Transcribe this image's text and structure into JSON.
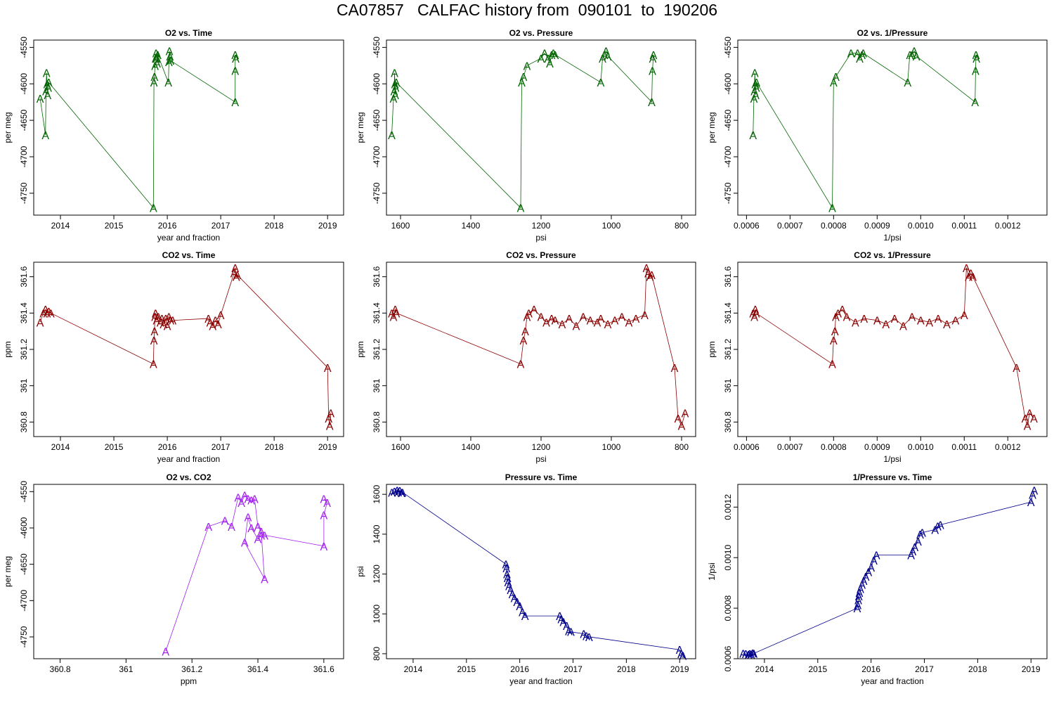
{
  "title": "CA07857   CALFAC history from  090101  to  190206",
  "chart_data": [
    {
      "type": "line",
      "marker": "A",
      "title": "O2 vs. Time",
      "xlabel": "year and fraction",
      "ylabel": "per meg",
      "xlim": [
        2013.5,
        2019.3
      ],
      "ylim": [
        -4780,
        -4540
      ],
      "xticks": [
        2014,
        2015,
        2016,
        2017,
        2018,
        2019
      ],
      "yticks": [
        -4750,
        -4700,
        -4650,
        -4600,
        -4550
      ],
      "color": "#006400",
      "x": [
        2013.62,
        2013.72,
        2013.73,
        2013.74,
        2013.75,
        2013.76,
        2013.77,
        2013.78,
        2015.74,
        2015.75,
        2015.76,
        2015.77,
        2015.78,
        2015.79,
        2015.8,
        2015.81,
        2015.82,
        2016.02,
        2016.03,
        2016.04,
        2016.05,
        2016.06,
        2017.27,
        2017.27,
        2017.27,
        2017.28
      ],
      "y": [
        -4620,
        -4670,
        -4610,
        -4585,
        -4600,
        -4615,
        -4605,
        -4598,
        -4770,
        -4598,
        -4590,
        -4575,
        -4565,
        -4558,
        -4565,
        -4572,
        -4560,
        -4598,
        -4570,
        -4555,
        -4562,
        -4568,
        -4625,
        -4582,
        -4560,
        -4565
      ]
    },
    {
      "type": "line",
      "marker": "A",
      "title": "O2 vs. Pressure",
      "xlabel": "psi",
      "ylabel": "per meg",
      "xlim": [
        1640,
        760
      ],
      "ylim": [
        -4780,
        -4540
      ],
      "xticks": [
        1600,
        1400,
        1200,
        1000,
        800
      ],
      "yticks": [
        -4750,
        -4700,
        -4650,
        -4600,
        -4550
      ],
      "color": "#006400",
      "x": [
        1625,
        1620,
        1618,
        1617,
        1616,
        1615,
        1614,
        1612,
        1258,
        1255,
        1250,
        1240,
        1200,
        1190,
        1180,
        1175,
        1170,
        1165,
        1160,
        1030,
        1025,
        1020,
        1015,
        1010,
        885,
        883,
        880,
        882
      ],
      "y": [
        -4670,
        -4620,
        -4610,
        -4585,
        -4600,
        -4615,
        -4605,
        -4598,
        -4770,
        -4598,
        -4590,
        -4575,
        -4565,
        -4558,
        -4565,
        -4572,
        -4560,
        -4558,
        -4560,
        -4598,
        -4565,
        -4560,
        -4555,
        -4562,
        -4625,
        -4582,
        -4560,
        -4565
      ]
    },
    {
      "type": "line",
      "marker": "A",
      "title": "O2 vs. 1/Pressure",
      "xlabel": "1/psi",
      "ylabel": "per meg",
      "xlim": [
        0.00058,
        0.00129
      ],
      "ylim": [
        -4780,
        -4540
      ],
      "xticks": [
        0.0006,
        0.0007,
        0.0008,
        0.0009,
        0.001,
        0.0011,
        0.0012
      ],
      "xticklabels": [
        "0.0006",
        "0.0007",
        "0.0008",
        "0.0009",
        "0.0010",
        "0.0011",
        "0.0012"
      ],
      "yticks": [
        -4750,
        -4700,
        -4650,
        -4600,
        -4550
      ],
      "color": "#006400",
      "x": [
        0.000615,
        0.000617,
        0.000618,
        0.000619,
        0.00062,
        0.000621,
        0.000622,
        0.000623,
        0.000797,
        0.0008,
        0.000805,
        0.00084,
        0.000855,
        0.00086,
        0.000865,
        0.000868,
        0.00097,
        0.000975,
        0.00098,
        0.000985,
        0.00099,
        0.001125,
        0.001126,
        0.001127,
        0.001128
      ],
      "y": [
        -4670,
        -4620,
        -4610,
        -4585,
        -4600,
        -4615,
        -4605,
        -4598,
        -4770,
        -4598,
        -4590,
        -4558,
        -4558,
        -4565,
        -4560,
        -4558,
        -4598,
        -4560,
        -4560,
        -4555,
        -4562,
        -4625,
        -4582,
        -4560,
        -4565
      ]
    },
    {
      "type": "line",
      "marker": "A",
      "title": "CO2 vs. Time",
      "xlabel": "year and fraction",
      "ylabel": "ppm",
      "xlim": [
        2013.5,
        2019.3
      ],
      "ylim": [
        360.72,
        361.68
      ],
      "xticks": [
        2014,
        2015,
        2016,
        2017,
        2018,
        2019
      ],
      "yticks": [
        360.8,
        361.0,
        361.2,
        361.4,
        361.6
      ],
      "color": "#8b0000",
      "x": [
        2013.62,
        2013.68,
        2013.72,
        2013.75,
        2013.78,
        2013.82,
        2015.74,
        2015.75,
        2015.76,
        2015.77,
        2015.78,
        2015.8,
        2015.83,
        2015.87,
        2015.9,
        2015.93,
        2015.97,
        2016.0,
        2016.03,
        2016.06,
        2016.1,
        2016.77,
        2016.8,
        2016.85,
        2016.9,
        2016.95,
        2017.0,
        2017.25,
        2017.27,
        2017.29,
        2017.31,
        2019.0,
        2019.02,
        2019.04,
        2019.06
      ],
      "y": [
        361.35,
        361.4,
        361.42,
        361.4,
        361.41,
        361.4,
        361.12,
        361.25,
        361.3,
        361.38,
        361.4,
        361.36,
        361.38,
        361.35,
        361.37,
        361.34,
        361.37,
        361.33,
        361.38,
        361.36,
        361.36,
        361.37,
        361.35,
        361.33,
        361.36,
        361.34,
        361.39,
        361.62,
        361.65,
        361.6,
        361.61,
        361.1,
        360.82,
        360.78,
        360.85
      ]
    },
    {
      "type": "line",
      "marker": "A",
      "title": "CO2 vs. Pressure",
      "xlabel": "psi",
      "ylabel": "ppm",
      "xlim": [
        1640,
        760
      ],
      "ylim": [
        360.72,
        361.68
      ],
      "xticks": [
        1600,
        1400,
        1200,
        1000,
        800
      ],
      "yticks": [
        360.8,
        361.0,
        361.2,
        361.4,
        361.6
      ],
      "color": "#8b0000",
      "x": [
        1625,
        1620,
        1615,
        1612,
        1258,
        1250,
        1245,
        1240,
        1235,
        1220,
        1200,
        1185,
        1170,
        1160,
        1140,
        1120,
        1100,
        1080,
        1060,
        1040,
        1030,
        1010,
        990,
        970,
        950,
        930,
        905,
        900,
        895,
        890,
        885,
        820,
        810,
        800,
        790
      ],
      "y": [
        361.4,
        361.38,
        361.42,
        361.4,
        361.12,
        361.25,
        361.3,
        361.38,
        361.4,
        361.42,
        361.38,
        361.35,
        361.37,
        361.36,
        361.34,
        361.37,
        361.33,
        361.38,
        361.36,
        361.35,
        361.37,
        361.34,
        361.36,
        361.38,
        361.35,
        361.37,
        361.39,
        361.65,
        361.62,
        361.6,
        361.61,
        361.1,
        360.82,
        360.78,
        360.85
      ]
    },
    {
      "type": "line",
      "marker": "A",
      "title": "CO2 vs. 1/Pressure",
      "xlabel": "1/psi",
      "ylabel": "ppm",
      "xlim": [
        0.00058,
        0.00129
      ],
      "ylim": [
        360.72,
        361.68
      ],
      "xticks": [
        0.0006,
        0.0007,
        0.0008,
        0.0009,
        0.001,
        0.0011,
        0.0012
      ],
      "xticklabels": [
        "0.0006",
        "0.0007",
        "0.0008",
        "0.0009",
        "0.0010",
        "0.0011",
        "0.0012"
      ],
      "yticks": [
        360.8,
        361.0,
        361.2,
        361.4,
        361.6
      ],
      "color": "#8b0000",
      "x": [
        0.000615,
        0.000618,
        0.00062,
        0.000622,
        0.000797,
        0.0008,
        0.000803,
        0.000805,
        0.00081,
        0.00082,
        0.00083,
        0.00085,
        0.00087,
        0.0009,
        0.00092,
        0.00094,
        0.00096,
        0.00098,
        0.001,
        0.00102,
        0.00104,
        0.00106,
        0.00108,
        0.0011,
        0.001105,
        0.00111,
        0.001115,
        0.00112,
        0.00122,
        0.00124,
        0.001245,
        0.00125,
        0.00126
      ],
      "y": [
        361.4,
        361.38,
        361.42,
        361.4,
        361.12,
        361.25,
        361.3,
        361.38,
        361.4,
        361.42,
        361.38,
        361.35,
        361.37,
        361.36,
        361.34,
        361.37,
        361.33,
        361.38,
        361.36,
        361.35,
        361.37,
        361.34,
        361.36,
        361.39,
        361.65,
        361.6,
        361.62,
        361.6,
        361.1,
        360.82,
        360.78,
        360.85,
        360.82
      ]
    },
    {
      "type": "line",
      "marker": "A",
      "title": "O2 vs. CO2",
      "xlabel": "ppm",
      "ylabel": "per meg",
      "xlim": [
        360.72,
        361.66
      ],
      "ylim": [
        -4780,
        -4540
      ],
      "xticks": [
        360.8,
        361.0,
        361.2,
        361.4,
        361.6
      ],
      "yticks": [
        -4750,
        -4700,
        -4650,
        -4600,
        -4550
      ],
      "color": "#a020f0",
      "x": [
        361.12,
        361.25,
        361.3,
        361.32,
        361.34,
        361.35,
        361.36,
        361.37,
        361.38,
        361.39,
        361.4,
        361.41,
        361.42,
        361.36,
        361.37,
        361.38,
        361.4,
        361.41,
        361.42,
        361.6,
        361.6,
        361.61,
        361.6
      ],
      "y": [
        -4770,
        -4598,
        -4590,
        -4598,
        -4558,
        -4565,
        -4555,
        -4560,
        -4562,
        -4560,
        -4598,
        -4605,
        -4670,
        -4620,
        -4585,
        -4600,
        -4615,
        -4610,
        -4610,
        -4625,
        -4582,
        -4565,
        -4560
      ]
    },
    {
      "type": "line",
      "marker": "A",
      "title": "Pressure vs. Time",
      "xlabel": "year and fraction",
      "ylabel": "psi",
      "xlim": [
        2013.5,
        2019.3
      ],
      "ylim": [
        775,
        1650
      ],
      "xticks": [
        2014,
        2015,
        2016,
        2017,
        2018,
        2019
      ],
      "yticks": [
        800,
        1000,
        1200,
        1400,
        1600
      ],
      "color": "#00008b",
      "x": [
        2013.6,
        2013.65,
        2013.7,
        2013.72,
        2013.75,
        2013.78,
        2013.8,
        2015.74,
        2015.75,
        2015.76,
        2015.77,
        2015.78,
        2015.8,
        2015.83,
        2015.86,
        2015.9,
        2015.95,
        2016.0,
        2016.05,
        2016.1,
        2016.75,
        2016.78,
        2016.82,
        2016.88,
        2016.92,
        2016.96,
        2017.2,
        2017.25,
        2017.3,
        2019.0,
        2019.03,
        2019.06
      ],
      "y": [
        1610,
        1615,
        1620,
        1612,
        1618,
        1608,
        1610,
        1250,
        1230,
        1200,
        1180,
        1160,
        1140,
        1120,
        1100,
        1080,
        1060,
        1040,
        1010,
        990,
        990,
        975,
        960,
        940,
        915,
        910,
        900,
        890,
        885,
        820,
        800,
        790
      ]
    },
    {
      "type": "line",
      "marker": "A",
      "title": "1/Pressure vs. Time",
      "xlabel": "year and fraction",
      "ylabel": "1/psi",
      "xlim": [
        2013.5,
        2019.3
      ],
      "ylim": [
        0.0006,
        0.00129
      ],
      "xticks": [
        2014,
        2015,
        2016,
        2017,
        2018,
        2019
      ],
      "yticks": [
        0.0006,
        0.0008,
        0.001,
        0.0012
      ],
      "yticklabels": [
        "0.0006",
        "0.0008",
        "0.0010",
        "0.0012"
      ],
      "color": "#00008b",
      "x": [
        2013.6,
        2013.65,
        2013.7,
        2013.72,
        2013.75,
        2013.78,
        2013.8,
        2015.74,
        2015.75,
        2015.76,
        2015.77,
        2015.78,
        2015.8,
        2015.83,
        2015.86,
        2015.9,
        2015.95,
        2016.0,
        2016.05,
        2016.1,
        2016.75,
        2016.78,
        2016.82,
        2016.88,
        2016.92,
        2016.96,
        2017.2,
        2017.25,
        2017.3,
        2019.0,
        2019.03,
        2019.06
      ],
      "y": [
        0.000621,
        0.000619,
        0.000617,
        0.00062,
        0.000618,
        0.000622,
        0.000621,
        0.0008,
        0.000813,
        0.000833,
        0.000847,
        0.000862,
        0.000877,
        0.000893,
        0.000909,
        0.000926,
        0.000943,
        0.000962,
        0.00099,
        0.00101,
        0.00101,
        0.001026,
        0.001042,
        0.001064,
        0.001093,
        0.001099,
        0.001111,
        0.001124,
        0.00113,
        0.00122,
        0.00125,
        0.001266
      ]
    }
  ]
}
